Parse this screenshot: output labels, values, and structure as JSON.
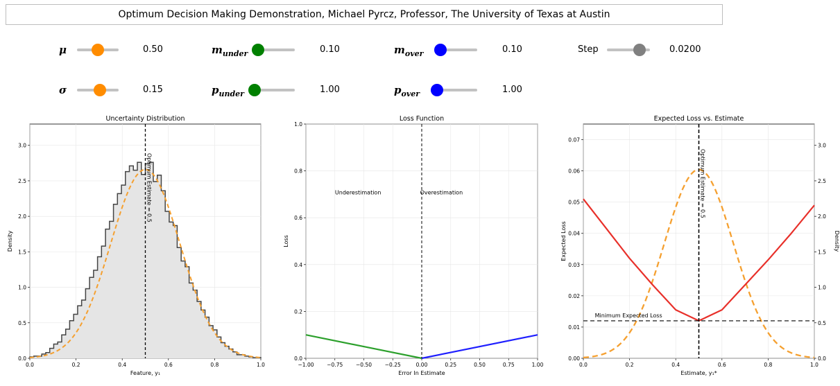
{
  "title": "Optimum Decision Making Demonstration, Michael Pyrcz, Professor, The University of Texas at Austin",
  "controls": [
    {
      "id": "mu",
      "sym": "μ",
      "sub": "",
      "value": "0.50",
      "level": 0.5,
      "color": "#ff8c00"
    },
    {
      "id": "m_under",
      "sym": "m",
      "sub": "under",
      "value": "0.10",
      "level": 0.1,
      "color": "#008000"
    },
    {
      "id": "m_over",
      "sym": "m",
      "sub": "over",
      "value": "0.10",
      "level": 0.1,
      "color": "#0000ff"
    },
    {
      "id": "step",
      "sym": "Step",
      "sub": "",
      "value": "0.0200",
      "level": 0.8,
      "color": "#808080"
    },
    {
      "id": "sigma",
      "sym": "σ",
      "sub": "",
      "value": "0.15",
      "level": 0.55,
      "color": "#ff8c00"
    },
    {
      "id": "p_under",
      "sym": "p",
      "sub": "under",
      "value": "1.00",
      "level": 0.0,
      "color": "#008000"
    },
    {
      "id": "p_over",
      "sym": "p",
      "sub": "over",
      "value": "1.00",
      "level": 0.0,
      "color": "#0000ff"
    }
  ],
  "chart_data": [
    {
      "type": "area",
      "title": "Uncertainty Distribution",
      "xlabel": "Feature, y₁",
      "ylabel": "Density",
      "xlim": [
        0,
        1
      ],
      "ylim": [
        0,
        3.3
      ],
      "xticks": [
        "0.0",
        "0.2",
        "0.4",
        "0.6",
        "0.8",
        "1.0"
      ],
      "yticks": [
        "0.0",
        "0.5",
        "1.0",
        "1.5",
        "2.0",
        "2.5",
        "3.0"
      ],
      "annotation": "Optimum Estimate = 0.5",
      "optimum": 0.5,
      "histogram": [
        0.02,
        0.03,
        0.03,
        0.06,
        0.08,
        0.14,
        0.2,
        0.23,
        0.33,
        0.41,
        0.53,
        0.62,
        0.74,
        0.82,
        0.98,
        1.14,
        1.24,
        1.43,
        1.58,
        1.82,
        1.93,
        2.17,
        2.32,
        2.44,
        2.63,
        2.71,
        2.65,
        2.76,
        2.59,
        2.74,
        2.76,
        2.49,
        2.58,
        2.36,
        2.07,
        1.92,
        1.87,
        1.56,
        1.37,
        1.29,
        1.06,
        0.96,
        0.8,
        0.68,
        0.58,
        0.46,
        0.4,
        0.3,
        0.22,
        0.17,
        0.13,
        0.09,
        0.05,
        0.05,
        0.03,
        0.02,
        0.01,
        0.01
      ],
      "pdf": {
        "name": "",
        "mu": 0.5,
        "sigma": 0.15
      }
    },
    {
      "type": "line",
      "title": "Loss Function",
      "xlabel": "Error In Estimate",
      "ylabel": "Loss",
      "xlim": [
        -1,
        1
      ],
      "ylim": [
        0,
        1
      ],
      "xticks": [
        "−1.00",
        "−0.75",
        "−0.50",
        "−0.25",
        "0.00",
        "0.25",
        "0.50",
        "0.75",
        "1.00"
      ],
      "yticks": [
        "0.0",
        "0.2",
        "0.4",
        "0.6",
        "0.8",
        "1.0"
      ],
      "annotations": [
        "Underestimation",
        "Overestimation"
      ],
      "series": [
        {
          "name": "",
          "x": [
            -1,
            0
          ],
          "y": [
            0.1,
            0
          ],
          "color": "#2ca02c"
        },
        {
          "name": "",
          "x": [
            0,
            1
          ],
          "y": [
            0,
            0.1
          ],
          "color": "#1f1fff"
        }
      ]
    },
    {
      "type": "line",
      "title": "Expected Loss vs. Estimate",
      "xlabel": "Estimate, y₁*",
      "ylabel": "Expected Loss",
      "ylabel_right": "Density",
      "xlim": [
        0,
        1
      ],
      "ylim": [
        0,
        0.075
      ],
      "ylim_right": [
        0,
        3.3
      ],
      "xticks": [
        "0.0",
        "0.2",
        "0.4",
        "0.6",
        "0.8",
        "1.0"
      ],
      "yticks": [
        "0.00",
        "0.01",
        "0.02",
        "0.03",
        "0.04",
        "0.05",
        "0.06",
        "0.07"
      ],
      "yticks_right": [
        "0.0",
        "0.5",
        "1.0",
        "1.5",
        "2.0",
        "2.5",
        "3.0"
      ],
      "annotation": "Optimum Estimate = 0.5",
      "min_label": "Minimum Expected Loss",
      "min_loss": 0.012,
      "optimum": 0.5,
      "expected_loss": {
        "x": [
          0,
          0.1,
          0.2,
          0.3,
          0.4,
          0.5,
          0.6,
          0.7,
          0.8,
          0.9,
          1.0
        ],
        "y": [
          0.051,
          0.0415,
          0.032,
          0.0235,
          0.0155,
          0.012,
          0.0155,
          0.0235,
          0.0315,
          0.04,
          0.049
        ]
      },
      "density": {
        "mu": 0.5,
        "sigma": 0.15
      }
    }
  ]
}
